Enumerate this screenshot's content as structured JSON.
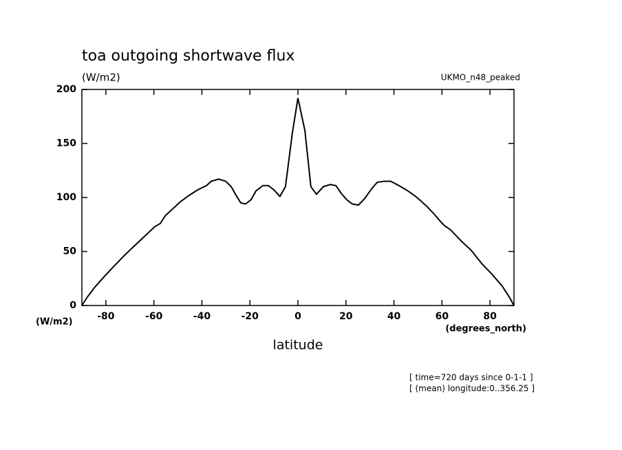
{
  "chart_data": {
    "type": "line",
    "title": "toa outgoing shortwave flux",
    "subtitle": "(W/m2)",
    "source_label": "UKMO_n48_peaked",
    "y_axis_label": "(W/m2)",
    "x_axis_units": "(degrees_north)",
    "x_axis_label": "latitude",
    "notes": [
      "[ time=720 days since 0-1-1 ]",
      "[ (mean) longitude:0..356.25 ]"
    ],
    "x": [
      -90,
      -88,
      -84.6,
      -81,
      -76.8,
      -72,
      -68.2,
      -63.9,
      -59.6,
      -57.3,
      -55.3,
      -51.9,
      -49,
      -45.3,
      -41.8,
      -38.1,
      -36.1,
      -33,
      -30.1,
      -27.8,
      -25.5,
      -23.8,
      -21.8,
      -19.5,
      -17.5,
      -14.6,
      -12.3,
      -10,
      -7.5,
      -5.2,
      -2.3,
      0,
      2.9,
      5.4,
      7.7,
      10.6,
      13.5,
      15.8,
      18,
      20.3,
      22.6,
      25.2,
      27.8,
      30.7,
      33,
      35.8,
      38.7,
      42.1,
      45.9,
      49.6,
      53.6,
      57,
      59.3,
      61,
      63.6,
      67.9,
      72.2,
      76.5,
      80.8,
      85.1,
      88,
      90
    ],
    "series": [
      {
        "color": "#000000",
        "values": [
          0,
          7,
          17,
          26,
          36,
          47,
          55,
          64,
          73,
          76,
          83,
          90,
          96,
          102,
          107,
          111,
          115,
          117,
          115,
          110,
          101,
          95,
          94,
          98,
          106,
          111,
          111,
          107,
          101,
          110,
          160,
          192,
          162,
          110,
          103,
          110,
          112,
          111,
          104,
          98,
          94,
          93,
          99,
          108,
          114,
          115,
          115,
          111,
          106,
          100,
          92,
          84,
          78,
          74,
          70,
          60,
          51,
          39,
          29,
          18,
          8,
          0
        ]
      }
    ],
    "xlim": [
      -90,
      90
    ],
    "xticks": [
      -80,
      -60,
      -40,
      -20,
      0,
      20,
      40,
      60,
      80
    ],
    "ylim": [
      0,
      200
    ],
    "yticks": [
      0,
      50,
      100,
      150,
      200
    ]
  }
}
